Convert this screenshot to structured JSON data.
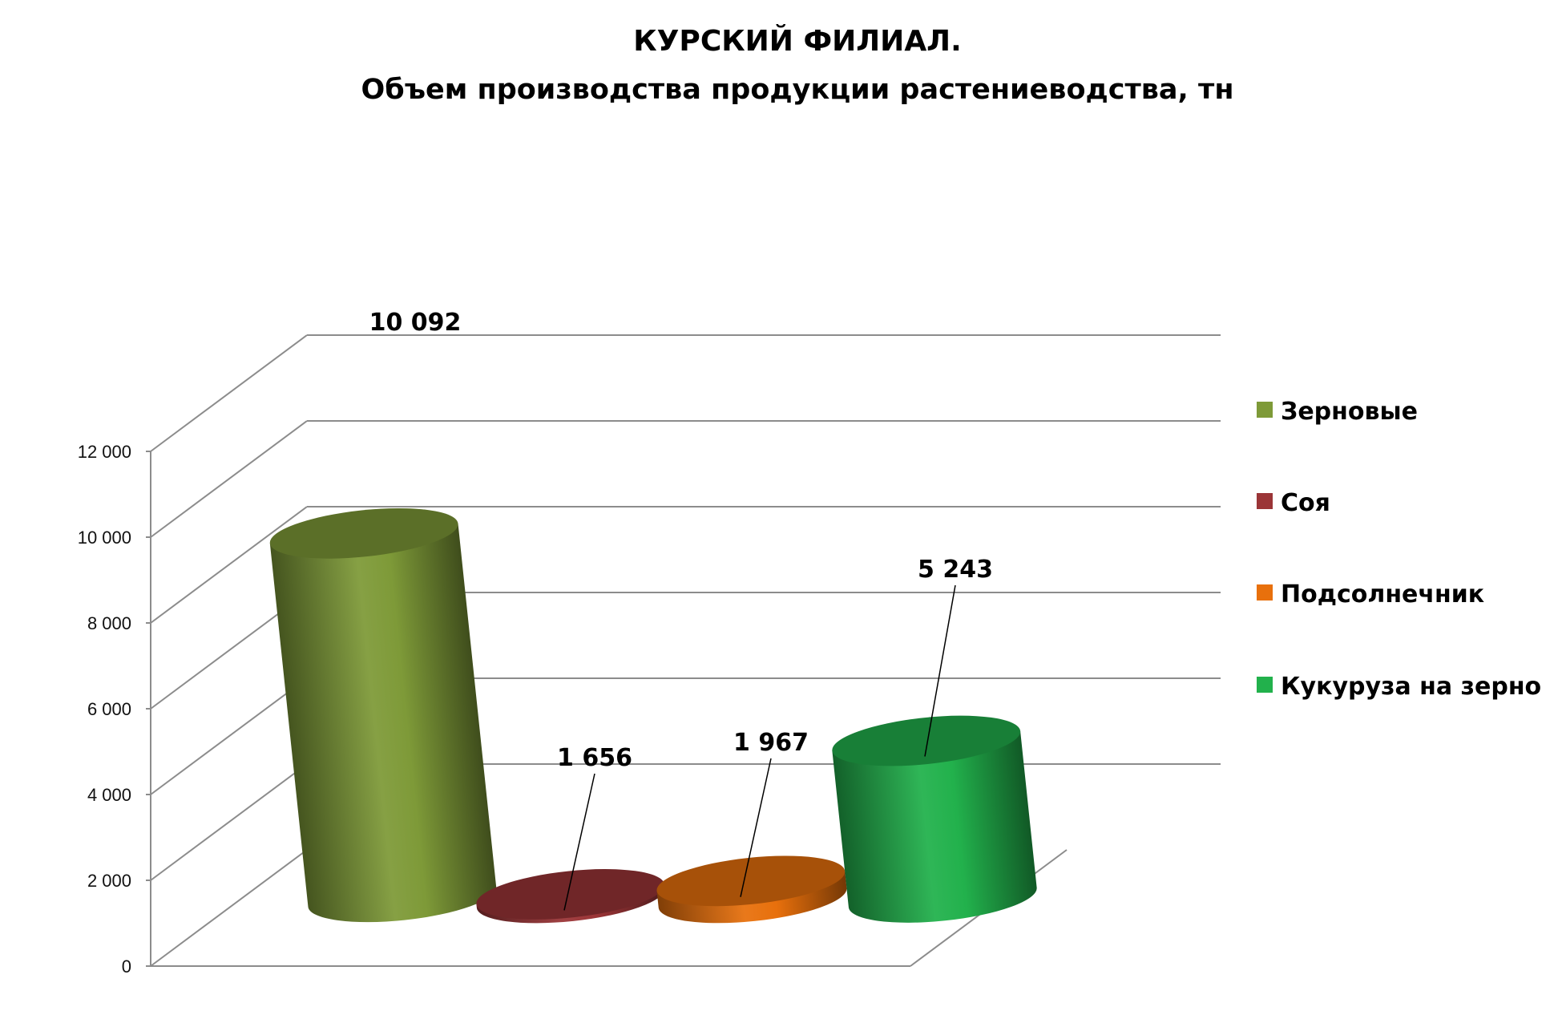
{
  "chart_data": {
    "type": "bar",
    "style": "3d-cylinder",
    "title": "КУРСКИЙ ФИЛИАЛ.",
    "subtitle": "Объем производства продукции растениеводства, тн",
    "categories": [
      "Зерновые",
      "Соя",
      "Подсолнечник",
      "Кукуруза на зерно"
    ],
    "values": [
      10092,
      1656,
      1967,
      5243
    ],
    "value_labels": [
      "10 092",
      "1 656",
      "1 967",
      "5 243"
    ],
    "colors": [
      "#7e9a38",
      "#9b3537",
      "#e8700c",
      "#22b14c"
    ],
    "y_ticks": [
      "0",
      "2 000",
      "4 000",
      "6 000",
      "8 000",
      "10 000",
      "12 000"
    ],
    "ylim": [
      0,
      12000
    ],
    "grid": true,
    "legend_position": "right",
    "xlabel": "",
    "ylabel": ""
  }
}
